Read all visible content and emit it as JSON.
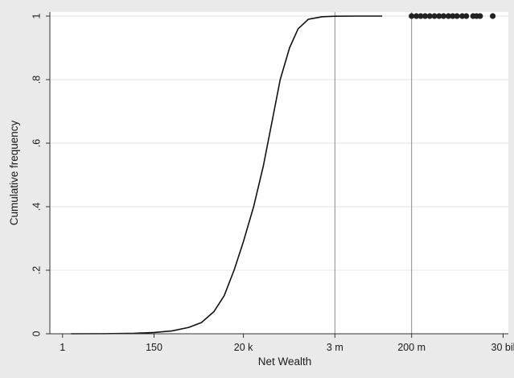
{
  "chart_data": {
    "type": "line",
    "title": "",
    "xlabel": "Net Wealth",
    "ylabel": "Cumulative frequency",
    "x_scale": "log10",
    "xlim": [
      0.5,
      40000000000.0
    ],
    "ylim": [
      0,
      1
    ],
    "grid": true,
    "x_ticks": [
      {
        "value": 1,
        "label": "1"
      },
      {
        "value": 150,
        "label": "150"
      },
      {
        "value": 20000,
        "label": "20 k"
      },
      {
        "value": 3000000,
        "label": "3 m"
      },
      {
        "value": 200000000,
        "label": "200 m"
      },
      {
        "value": 30000000000,
        "label": "30 bil"
      }
    ],
    "y_ticks": [
      {
        "value": 0,
        "label": "0"
      },
      {
        "value": 0.2,
        "label": ".2"
      },
      {
        "value": 0.4,
        "label": ".4"
      },
      {
        "value": 0.6,
        "label": ".6"
      },
      {
        "value": 0.8,
        "label": ".8"
      },
      {
        "value": 1,
        "label": "1"
      }
    ],
    "reference_lines_x": [
      3000000,
      200000000
    ],
    "series": [
      {
        "style": "line",
        "color": "#111111",
        "points": [
          [
            1.6,
            0.0
          ],
          [
            10,
            0.0003
          ],
          [
            50,
            0.0015
          ],
          [
            150,
            0.004
          ],
          [
            400,
            0.009
          ],
          [
            1000,
            0.02
          ],
          [
            2000,
            0.035
          ],
          [
            4000,
            0.07
          ],
          [
            7000,
            0.12
          ],
          [
            12000,
            0.2
          ],
          [
            20000,
            0.29
          ],
          [
            35000,
            0.4
          ],
          [
            60000,
            0.53
          ],
          [
            100000,
            0.68
          ],
          [
            150000,
            0.8
          ],
          [
            250000,
            0.9
          ],
          [
            400000,
            0.96
          ],
          [
            700000,
            0.99
          ],
          [
            1500000,
            0.998
          ],
          [
            3000000,
            0.9995
          ],
          [
            10000000,
            1.0
          ],
          [
            40000000,
            1.0
          ]
        ]
      },
      {
        "style": "scatter",
        "color": "#222222",
        "points": [
          [
            200000000,
            1
          ],
          [
            260000000,
            1
          ],
          [
            330000000,
            1
          ],
          [
            420000000,
            1
          ],
          [
            540000000,
            1
          ],
          [
            700000000,
            1
          ],
          [
            900000000,
            1
          ],
          [
            1150000000,
            1
          ],
          [
            1500000000,
            1
          ],
          [
            1900000000,
            1
          ],
          [
            2400000000,
            1
          ],
          [
            3200000000,
            1
          ],
          [
            4000000000,
            1
          ],
          [
            5800000000,
            1
          ],
          [
            7000000000,
            1
          ],
          [
            8500000000,
            1
          ],
          [
            17000000000,
            1
          ]
        ]
      }
    ]
  },
  "colors": {
    "frame_background": "#eaeaea",
    "plot_background": "#ffffff",
    "gridline": "#e3e3e3",
    "reference_line": "#8a8a8a",
    "axis": "#333333"
  }
}
